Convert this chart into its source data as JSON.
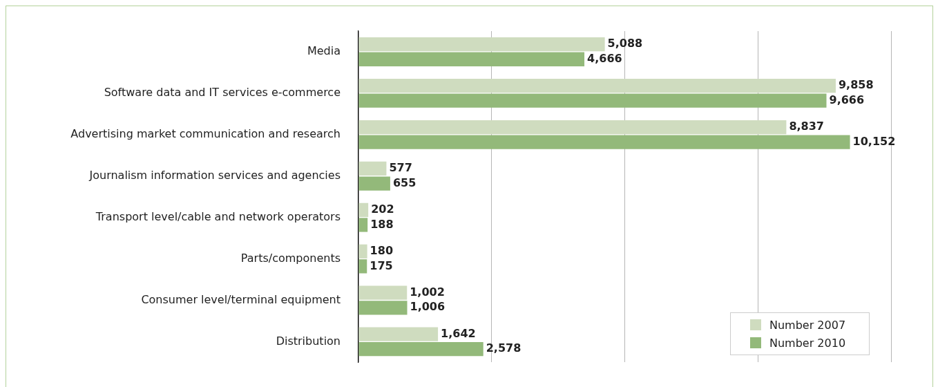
{
  "chart_data": {
    "type": "bar",
    "orientation": "horizontal",
    "categories": [
      "Media",
      "Software data and IT services e-commerce",
      "Advertising market communication and research",
      "Journalism information services and agencies",
      "Transport level/cable and network operators",
      "Parts/components",
      "Consumer level/terminal equipment",
      "Distribution"
    ],
    "series": [
      {
        "name": "Number 2007",
        "color": "#cfdcbf",
        "values": [
          5088,
          9858,
          8837,
          577,
          202,
          180,
          1002,
          1642
        ],
        "value_labels": [
          "5,088",
          "9,858",
          "8,837",
          "577",
          "202",
          "180",
          "1,002",
          "1,642"
        ]
      },
      {
        "name": "Number 2010",
        "color": "#93b97a",
        "values": [
          4666,
          9666,
          10152,
          655,
          188,
          175,
          1006,
          2578
        ],
        "value_labels": [
          "4,666",
          "9,666",
          "10,152",
          "655",
          "188",
          "175",
          "1,006",
          "2,578"
        ]
      }
    ],
    "xlim": [
      0,
      11000
    ],
    "xticks": [
      {
        "value": 0,
        "label": null
      },
      {
        "value": 2750,
        "label": null
      },
      {
        "value": 5500,
        "label": null
      },
      {
        "value": 8250,
        "label": null
      },
      {
        "value": 11000,
        "label": null
      }
    ],
    "tick_labels": "y",
    "grid": "x",
    "legend": "bottom right"
  }
}
